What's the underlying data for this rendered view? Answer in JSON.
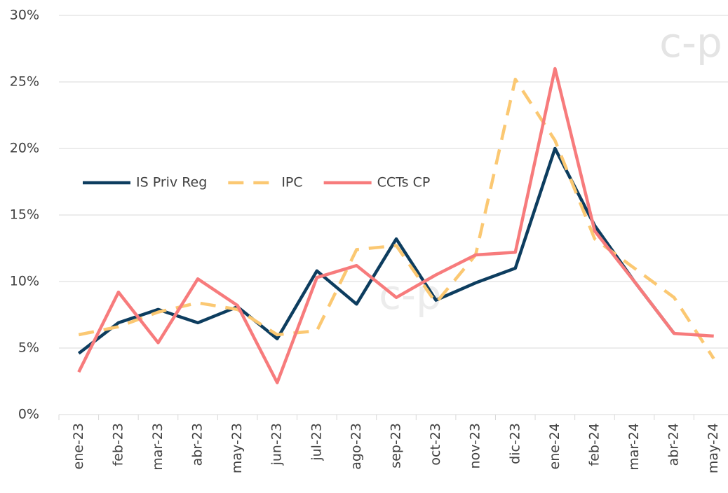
{
  "chart_data": {
    "type": "line",
    "watermark": "c-p",
    "categories": [
      "ene-23",
      "feb-23",
      "mar-23",
      "abr-23",
      "may-23",
      "jun-23",
      "jul-23",
      "ago-23",
      "sep-23",
      "oct-23",
      "nov-23",
      "dic-23",
      "ene-24",
      "feb-24",
      "mar-24",
      "abr-24",
      "may-24"
    ],
    "series": [
      {
        "name": "IS Priv Reg",
        "color": "#0d3d5f",
        "dash": false,
        "values": [
          4.6,
          6.9,
          7.9,
          6.9,
          8.1,
          5.7,
          10.8,
          8.3,
          13.2,
          8.6,
          9.9,
          11.0,
          20.0,
          14.2,
          10.0,
          6.1,
          null
        ]
      },
      {
        "name": "IPC",
        "color": "#fbc872",
        "dash": true,
        "values": [
          6.0,
          6.6,
          7.7,
          8.4,
          7.9,
          6.0,
          6.3,
          12.4,
          12.7,
          8.4,
          12.0,
          25.2,
          20.6,
          13.2,
          11.0,
          8.8,
          4.2
        ]
      },
      {
        "name": "CCTs CP",
        "color": "#f77b7c",
        "dash": false,
        "values": [
          3.2,
          9.2,
          5.4,
          10.2,
          8.2,
          2.4,
          10.3,
          11.2,
          8.8,
          10.5,
          12.0,
          12.2,
          26.0,
          13.8,
          10.0,
          6.1,
          5.9
        ]
      }
    ],
    "ylim": [
      0,
      30
    ],
    "yticks": [
      {
        "value": 0,
        "label": "0%"
      },
      {
        "value": 5,
        "label": "5%"
      },
      {
        "value": 10,
        "label": "10%"
      },
      {
        "value": 15,
        "label": "15%"
      },
      {
        "value": 20,
        "label": "20%"
      },
      {
        "value": 25,
        "label": "25%"
      },
      {
        "value": 30,
        "label": "30%"
      }
    ],
    "grid": true,
    "legend": "center-left"
  }
}
